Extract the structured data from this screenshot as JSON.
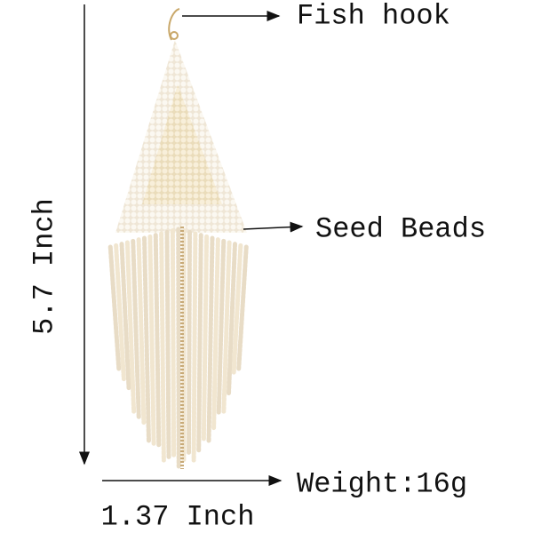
{
  "labels": {
    "fish_hook": "Fish hook",
    "seed_beads": "Seed Beads",
    "weight": "Weight:16g",
    "height": "5.7 Inch",
    "width": "1.37 Inch"
  }
}
